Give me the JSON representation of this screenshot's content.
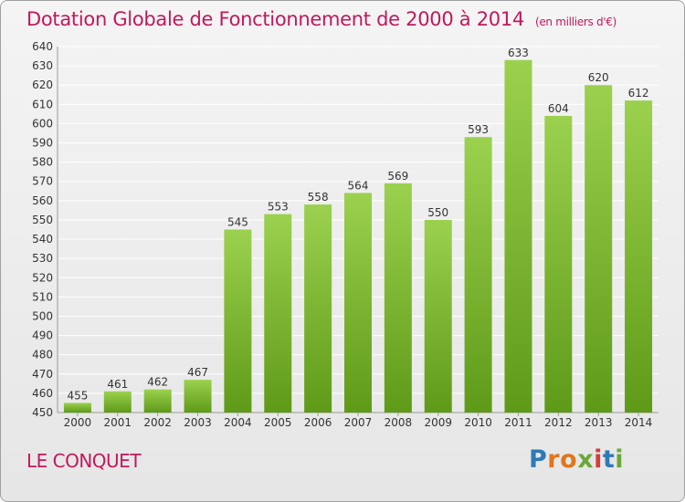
{
  "header": {
    "title": "Dotation Globale de Fonctionnement de 2000 à 2014",
    "unit": "(en milliers d'€)"
  },
  "footer": {
    "commune": "LE CONQUET",
    "logo": "Proxiti",
    "logo_letters": [
      "P",
      "r",
      "o",
      "x",
      "i",
      "t",
      "i"
    ]
  },
  "colors": {
    "title": "#c2185b",
    "bar_top": "#9bd14e",
    "bar_bottom": "#5e9a18",
    "grid": "#ffffff"
  },
  "chart_data": {
    "type": "bar",
    "title": "Dotation Globale de Fonctionnement de 2000 à 2014",
    "subtitle": "(en milliers d'€)",
    "xlabel": "",
    "ylabel": "",
    "categories": [
      "2000",
      "2001",
      "2002",
      "2003",
      "2004",
      "2005",
      "2006",
      "2007",
      "2008",
      "2009",
      "2010",
      "2011",
      "2012",
      "2013",
      "2014"
    ],
    "values": [
      455,
      461,
      462,
      467,
      545,
      553,
      558,
      564,
      569,
      550,
      593,
      633,
      604,
      620,
      612
    ],
    "ylim": [
      450,
      640
    ],
    "yticks": [
      450,
      460,
      470,
      480,
      490,
      500,
      510,
      520,
      530,
      540,
      550,
      560,
      570,
      580,
      590,
      600,
      610,
      620,
      630,
      640
    ],
    "grid": true,
    "legend": "none",
    "data_labels": true
  }
}
